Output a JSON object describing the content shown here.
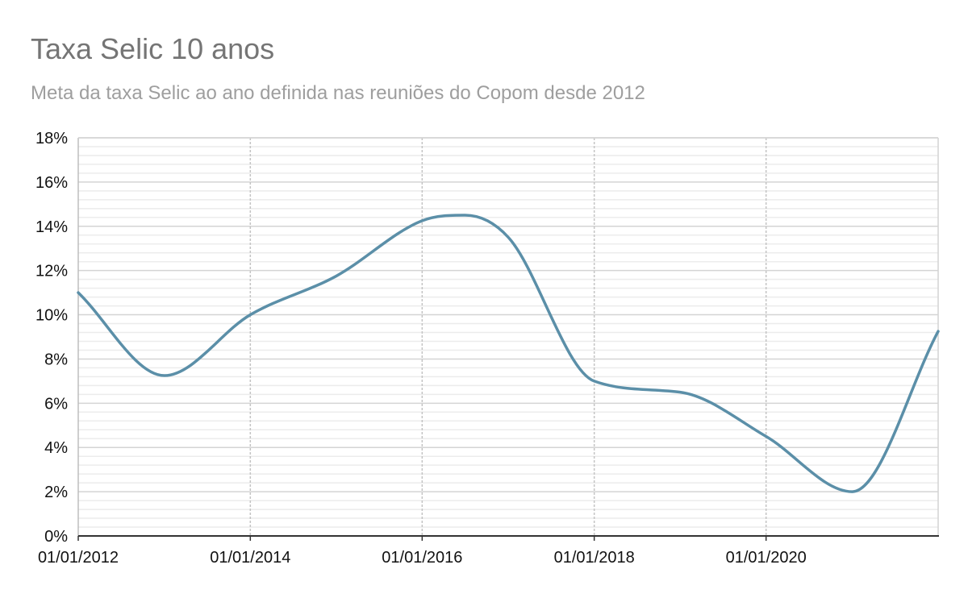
{
  "chart_data": {
    "type": "line",
    "title": "Taxa Selic 10 anos",
    "subtitle": "Meta da taxa Selic ao ano definida nas reuniões do Copom desde 2012",
    "xlabel": "",
    "ylabel": "",
    "x_ticks": [
      "01/01/2012",
      "01/01/2014",
      "01/01/2016",
      "01/01/2018",
      "01/01/2020"
    ],
    "y_ticks": [
      "0%",
      "2%",
      "4%",
      "6%",
      "8%",
      "10%",
      "12%",
      "14%",
      "16%",
      "18%"
    ],
    "ylim": [
      0,
      18
    ],
    "xlim": [
      "2012-01-01",
      "2022-01-01"
    ],
    "grid": true,
    "legend": "none",
    "colors": {
      "line": "#5b8fa8",
      "major_grid": "#d4d4d4",
      "minor_grid": "#ececec",
      "axis": "#333333"
    },
    "series": [
      {
        "x": [
          "2012-01-01",
          "2013-01-01",
          "2014-01-01",
          "2015-01-01",
          "2016-01-01",
          "2016-07-01",
          "2017-01-01",
          "2018-01-01",
          "2019-01-01",
          "2020-01-01",
          "2021-01-01",
          "2022-01-01"
        ],
        "values": [
          11.0,
          7.25,
          10.0,
          11.75,
          14.25,
          14.5,
          13.5,
          7.0,
          6.5,
          4.5,
          2.0,
          9.25
        ]
      }
    ]
  }
}
